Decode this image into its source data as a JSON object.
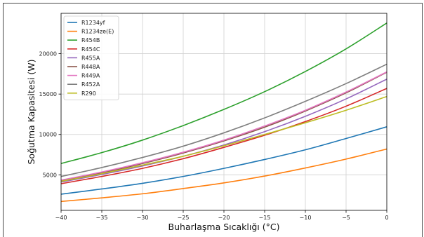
{
  "chart_data": {
    "type": "line",
    "title": "",
    "xlabel": "Buharlaşma Sıcaklığı (°C)",
    "ylabel": "Soğutma Kapasitesi (W)",
    "xlim": [
      -40,
      0
    ],
    "ylim": [
      600,
      25000
    ],
    "xticks": [
      -40,
      -35,
      -30,
      -25,
      -20,
      -15,
      -10,
      -5,
      0
    ],
    "yticks": [
      5000,
      10000,
      15000,
      20000
    ],
    "grid": true,
    "legend_position": "top-left",
    "x": [
      -40,
      -35,
      -30,
      -25,
      -20,
      -15,
      -10,
      -5,
      0
    ],
    "series": [
      {
        "name": "R1234yf",
        "color": "#1f77b4",
        "values": [
          2600,
          3250,
          3950,
          4800,
          5800,
          6900,
          8100,
          9500,
          10950
        ]
      },
      {
        "name": "R1234ze(E)",
        "color": "#ff7f0e",
        "values": [
          1700,
          2150,
          2650,
          3300,
          4000,
          4850,
          5850,
          6950,
          8200
        ]
      },
      {
        "name": "R454B",
        "color": "#2ca02c",
        "values": [
          6400,
          7750,
          9300,
          11100,
          13100,
          15300,
          17800,
          20600,
          23800
        ]
      },
      {
        "name": "R454C",
        "color": "#d62728",
        "values": [
          3900,
          4800,
          5800,
          7000,
          8400,
          9900,
          11600,
          13500,
          15700
        ]
      },
      {
        "name": "R455A",
        "color": "#9467bd",
        "values": [
          4100,
          5050,
          6100,
          7300,
          8700,
          10350,
          12250,
          14400,
          16850
        ]
      },
      {
        "name": "R448A",
        "color": "#8c564b",
        "values": [
          4300,
          5250,
          6400,
          7700,
          9200,
          10900,
          12900,
          15150,
          17700
        ]
      },
      {
        "name": "R449A",
        "color": "#e377c2",
        "values": [
          4350,
          5350,
          6500,
          7800,
          9300,
          11050,
          13000,
          15250,
          17750
        ]
      },
      {
        "name": "R452A",
        "color": "#7f7f7f",
        "values": [
          4800,
          5900,
          7150,
          8550,
          10200,
          12050,
          14100,
          16300,
          18700
        ]
      },
      {
        "name": "R290",
        "color": "#bcbd22",
        "values": [
          4200,
          5150,
          6200,
          7300,
          8600,
          10000,
          11450,
          13000,
          14700
        ]
      }
    ]
  }
}
